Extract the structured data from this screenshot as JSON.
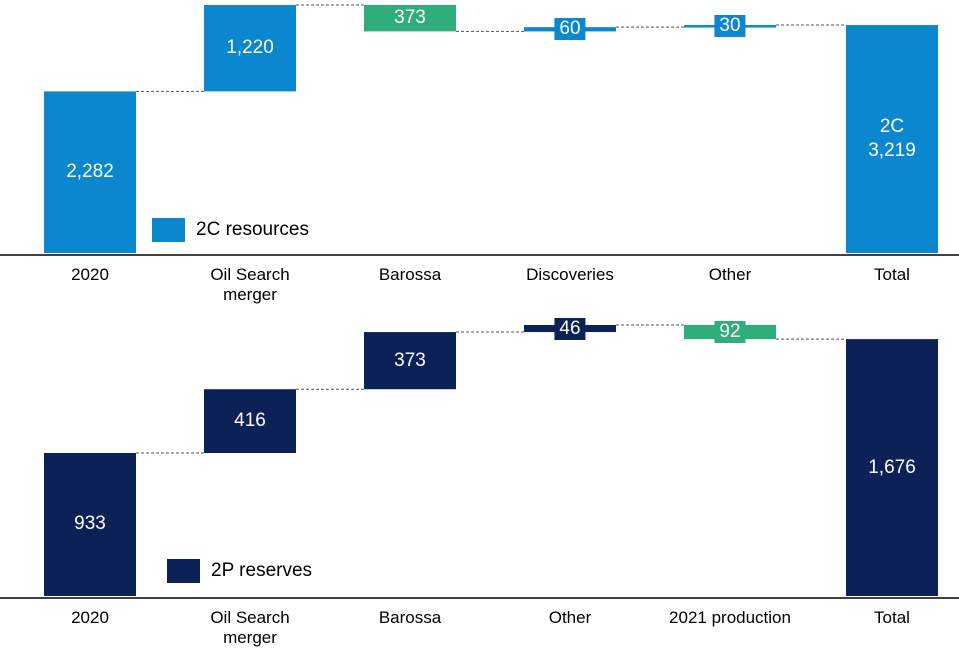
{
  "chart_data": [
    {
      "type": "waterfall",
      "categories": [
        "2020",
        "Oil Search merger",
        "Barossa",
        "Discoveries",
        "Other",
        "Total"
      ],
      "series": [
        {
          "name": "2C resources",
          "color": "#0a87cf",
          "values": [
            2282,
            1220,
            -373,
            60,
            30,
            3219
          ],
          "value_labels": [
            "2,282",
            "1,220",
            "373",
            "60",
            "30",
            "2C\n3,219"
          ]
        }
      ],
      "decrease_color": "#2fae7b"
    },
    {
      "type": "waterfall",
      "categories": [
        "2020",
        "Oil Search merger",
        "Barossa",
        "Other",
        "2021 production",
        "Total"
      ],
      "series": [
        {
          "name": "2P reserves",
          "color": "#0c2157",
          "values": [
            933,
            416,
            373,
            46,
            -92,
            1676
          ],
          "value_labels": [
            "933",
            "416",
            "373",
            "46",
            "92",
            "1,676"
          ]
        }
      ],
      "decrease_color": "#2fae7b"
    }
  ]
}
